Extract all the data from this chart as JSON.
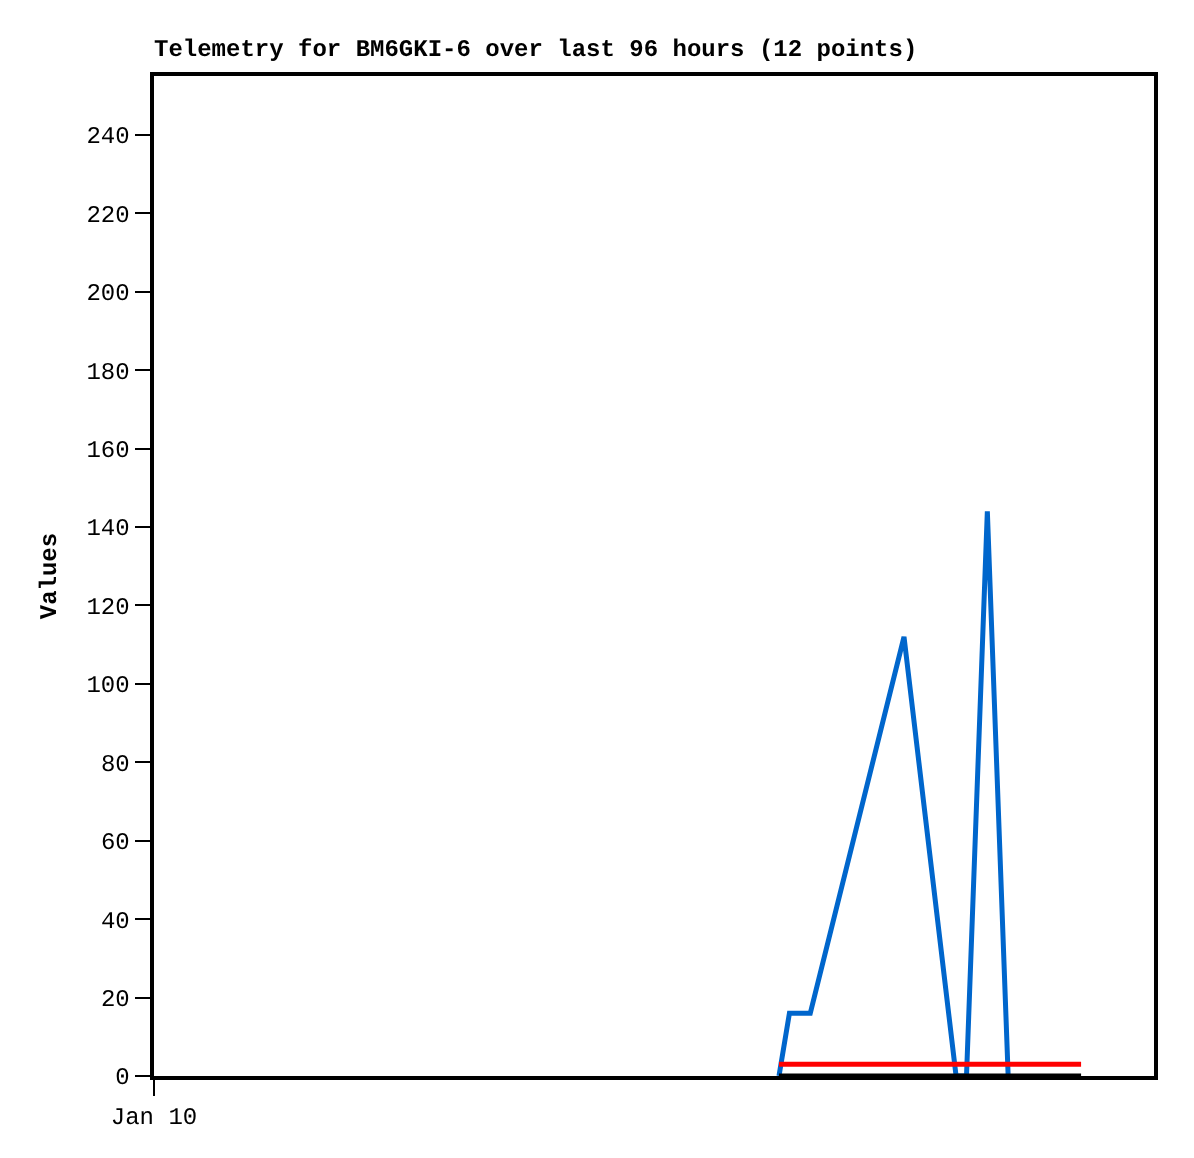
{
  "chart_data": {
    "type": "line",
    "title": "Telemetry for BM6GKI-6 over last 96 hours (12 points)",
    "ylabel": "Values",
    "categories": [
      "Jan 10",
      null,
      null,
      null,
      null,
      null,
      null,
      null,
      null,
      null,
      null,
      null,
      null,
      null,
      null,
      null,
      null,
      null,
      null,
      null,
      null,
      null,
      null,
      null,
      null,
      null,
      null,
      null,
      null,
      null,
      null,
      null,
      null,
      null,
      null,
      null,
      null,
      null,
      null,
      null,
      null,
      null,
      null,
      null,
      null,
      null,
      null,
      null,
      null,
      null,
      null,
      null,
      null,
      null,
      null,
      null,
      null,
      null,
      null,
      null,
      null,
      null,
      null,
      null,
      null,
      null,
      null,
      null,
      null,
      null,
      null,
      null,
      null,
      null,
      null,
      null,
      null,
      null,
      null,
      null,
      null,
      null,
      null,
      null,
      null,
      null,
      null,
      null,
      null,
      null,
      null,
      null,
      null,
      null,
      null,
      null,
      null
    ],
    "ylim": [
      0,
      255
    ],
    "yticks": [
      0,
      20,
      40,
      60,
      80,
      100,
      120,
      140,
      160,
      180,
      200,
      220,
      240
    ],
    "grid": false,
    "marker": "none",
    "line_style": "solid",
    "series": [
      {
        "color": "#0066cc",
        "values": [
          null,
          null,
          null,
          null,
          null,
          null,
          null,
          null,
          null,
          null,
          null,
          null,
          null,
          null,
          null,
          null,
          null,
          null,
          null,
          null,
          null,
          null,
          null,
          null,
          null,
          null,
          null,
          null,
          null,
          null,
          null,
          null,
          null,
          null,
          null,
          null,
          null,
          null,
          null,
          null,
          null,
          null,
          null,
          null,
          null,
          null,
          null,
          null,
          null,
          null,
          null,
          null,
          null,
          null,
          null,
          null,
          null,
          null,
          null,
          null,
          0,
          16,
          null,
          16,
          null,
          null,
          null,
          null,
          null,
          null,
          null,
          null,
          112,
          null,
          null,
          null,
          null,
          0,
          0,
          null,
          144,
          null,
          0,
          null,
          null,
          null,
          null,
          null,
          null,
          null,
          null,
          null,
          null,
          null,
          null,
          null,
          null
        ]
      },
      {
        "color": "#ff0000",
        "values": [
          null,
          null,
          null,
          null,
          null,
          null,
          null,
          null,
          null,
          null,
          null,
          null,
          null,
          null,
          null,
          null,
          null,
          null,
          null,
          null,
          null,
          null,
          null,
          null,
          null,
          null,
          null,
          null,
          null,
          null,
          null,
          null,
          null,
          null,
          null,
          null,
          null,
          null,
          null,
          null,
          null,
          null,
          null,
          null,
          null,
          null,
          null,
          null,
          null,
          null,
          null,
          null,
          null,
          null,
          null,
          null,
          null,
          null,
          null,
          null,
          3,
          3,
          3,
          3,
          3,
          3,
          3,
          3,
          3,
          3,
          3,
          3,
          3,
          3,
          3,
          3,
          3,
          3,
          3,
          3,
          3,
          3,
          3,
          3,
          3,
          3,
          3,
          3,
          3,
          3,
          null,
          null,
          null,
          null,
          null,
          null,
          null
        ]
      },
      {
        "color": "#000000",
        "values": [
          null,
          null,
          null,
          null,
          null,
          null,
          null,
          null,
          null,
          null,
          null,
          null,
          null,
          null,
          null,
          null,
          null,
          null,
          null,
          null,
          null,
          null,
          null,
          null,
          null,
          null,
          null,
          null,
          null,
          null,
          null,
          null,
          null,
          null,
          null,
          null,
          null,
          null,
          null,
          null,
          null,
          null,
          null,
          null,
          null,
          null,
          null,
          null,
          null,
          null,
          null,
          null,
          null,
          null,
          null,
          null,
          null,
          null,
          null,
          null,
          0,
          0,
          0,
          0,
          0,
          0,
          0,
          0,
          0,
          0,
          0,
          0,
          0,
          0,
          0,
          0,
          0,
          0,
          0,
          0,
          0,
          0,
          0,
          0,
          0,
          0,
          0,
          0,
          0,
          0,
          null,
          null,
          null,
          null,
          null,
          null,
          null
        ]
      }
    ]
  }
}
